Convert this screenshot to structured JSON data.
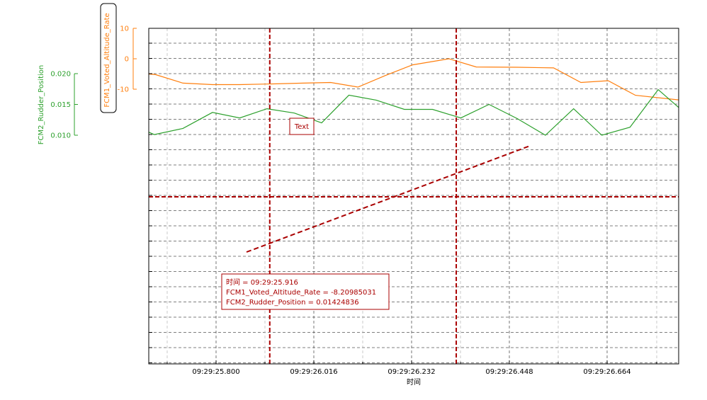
{
  "chart_data": {
    "type": "line",
    "xlabel": "时间",
    "x_ticks": [
      "09:29:25.800",
      "09:29:26.016",
      "09:29:26.232",
      "09:29:26.448",
      "09:29:26.664"
    ],
    "series": [
      {
        "name": "FCM1_Voted_Altitude_Rate",
        "color": "#ff7f0e",
        "axis": "FCM1_Voted_Altitude_Rate",
        "x": [
          "09:29:25.650",
          "09:29:25.665",
          "09:29:25.725",
          "09:29:25.790",
          "09:29:25.850",
          "09:29:25.910",
          "09:29:25.990",
          "09:29:26.050",
          "09:29:26.110",
          "09:29:26.170",
          "09:29:26.230",
          "09:29:26.310",
          "09:29:26.370",
          "09:29:26.460",
          "09:29:26.540",
          "09:29:26.600",
          "09:29:26.660",
          "09:29:26.720",
          "09:29:26.815"
        ],
        "values": [
          -5.0,
          -5.2,
          -8.0,
          -8.5,
          -8.5,
          -8.3,
          -8.0,
          -7.8,
          -9.3,
          -5.5,
          -2.0,
          0.0,
          -2.7,
          -2.8,
          -3.0,
          -7.8,
          -7.2,
          -12.0,
          -13.5
        ]
      },
      {
        "name": "FCM2_Rudder_Position",
        "color": "#2ca02c",
        "axis": "FCM2_Rudder_Position",
        "x": [
          "09:29:25.650",
          "09:29:25.662",
          "09:29:25.725",
          "09:29:25.790",
          "09:29:25.850",
          "09:29:25.910",
          "09:29:25.970",
          "09:29:26.030",
          "09:29:26.090",
          "09:29:26.150",
          "09:29:26.212",
          "09:29:26.274",
          "09:29:26.336",
          "09:29:26.398",
          "09:29:26.460",
          "09:29:26.522",
          "09:29:26.584",
          "09:29:26.646",
          "09:29:26.708",
          "09:29:26.770",
          "09:29:26.815"
        ],
        "values": [
          0.0105,
          0.0101,
          0.0111,
          0.0137,
          0.0128,
          0.0143,
          0.0136,
          0.012,
          0.0165,
          0.0157,
          0.0142,
          0.0142,
          0.0128,
          0.015,
          0.0127,
          0.01,
          0.0143,
          0.01,
          0.0113,
          0.0174,
          0.0145
        ]
      }
    ],
    "axes": [
      {
        "name": "FCM1_Voted_Altitude_Rate",
        "color": "#ff7f0e",
        "ticks": [
          10,
          0,
          -10
        ],
        "ylim": [
          -10,
          10
        ],
        "boxed_label": true
      },
      {
        "name": "FCM2_Rudder_Position",
        "color": "#2ca02c",
        "ticks": [
          0.02,
          0.015,
          0.01
        ],
        "ylim": [
          0.01,
          0.02
        ]
      }
    ],
    "xlim": [
      "09:29:25.650",
      "09:29:26.815"
    ],
    "grid": true,
    "cursors": {
      "vertical": [
        "09:29:25.916",
        "09:29:26.326"
      ],
      "horizontal_level": "mid",
      "color": "#aa0000"
    },
    "annotations": [
      {
        "text": "Text"
      }
    ],
    "readout": {
      "lines": [
        "时间 = 09:29:25.916",
        "FCM1_Voted_Altitude_Rate = -8.20985031",
        "FCM2_Rudder_Position = 0.01424836"
      ]
    }
  }
}
